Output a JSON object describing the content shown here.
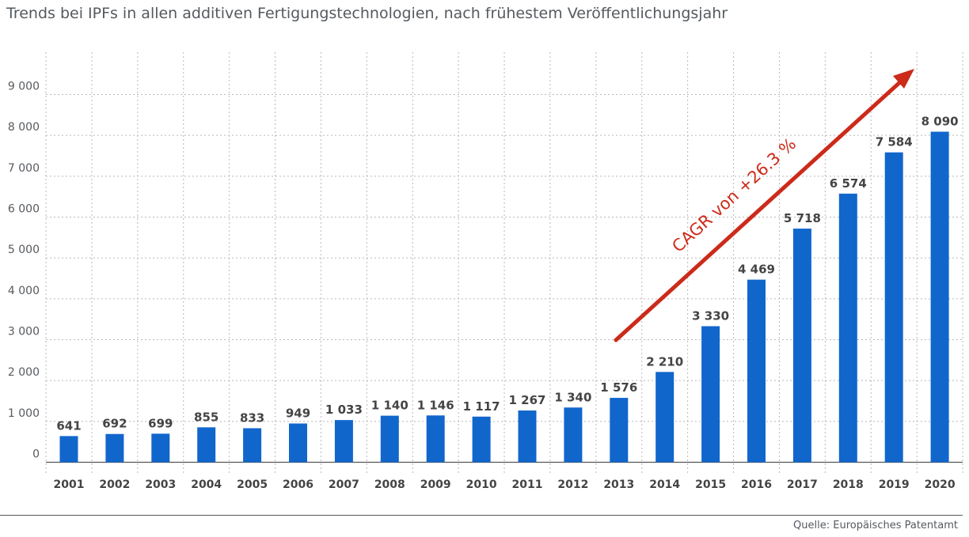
{
  "title": "Trends bei IPFs in allen additiven Fertigungstechnologien, nach frühestem Veröffentlichungsjahr",
  "source": "Quelle: Europäisches Patentamt",
  "colors": {
    "bar": "#1166cc",
    "arrow": "#cc2a1a",
    "grid": "#b8b8b8",
    "text": "#555a5f",
    "label": "#444444"
  },
  "chart_data": {
    "type": "bar",
    "categories": [
      "2001",
      "2002",
      "2003",
      "2004",
      "2005",
      "2006",
      "2007",
      "2008",
      "2009",
      "2010",
      "2011",
      "2012",
      "2013",
      "2014",
      "2015",
      "2016",
      "2017",
      "2018",
      "2019",
      "2020"
    ],
    "values": [
      641,
      692,
      699,
      855,
      833,
      949,
      1033,
      1140,
      1146,
      1117,
      1267,
      1340,
      1576,
      2210,
      3330,
      4469,
      5718,
      6574,
      7584,
      8090
    ],
    "value_labels": [
      "641",
      "692",
      "699",
      "855",
      "833",
      "949",
      "1 033",
      "1 140",
      "1 146",
      "1 117",
      "1 267",
      "1 340",
      "1 576",
      "2 210",
      "3 330",
      "4 469",
      "5 718",
      "6 574",
      "7 584",
      "8 090"
    ],
    "yticks": [
      0,
      1000,
      2000,
      3000,
      4000,
      5000,
      6000,
      7000,
      8000,
      9000
    ],
    "ytick_labels": [
      "0",
      "1 000",
      "2 000",
      "3 000",
      "4 000",
      "5 000",
      "6 000",
      "7 000",
      "8 000",
      "9 000"
    ],
    "ylim": [
      0,
      9000
    ],
    "grid": true,
    "annotation": "CAGR von +26.3 %"
  }
}
